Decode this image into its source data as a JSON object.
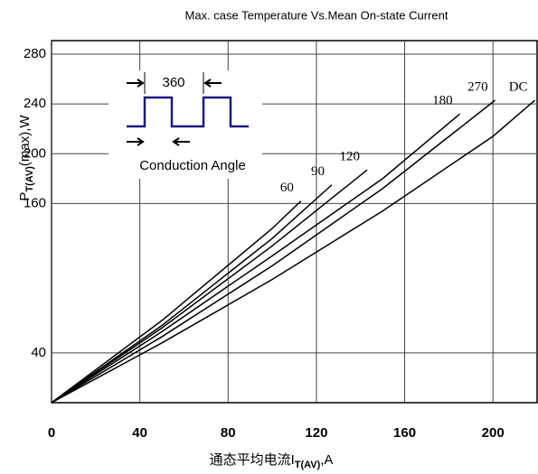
{
  "chart_data": {
    "type": "line",
    "title": "Max. case Temperature Vs.Mean On-state Current",
    "y_label": [
      "P",
      "T(AV)",
      "(max),W"
    ],
    "x_label": [
      "通态平均电流I",
      "T(AV)",
      ",A"
    ],
    "inset": {
      "period": "360",
      "caption": "Conduction Angle"
    },
    "xlim": [
      0,
      220
    ],
    "xticks": [
      0,
      40,
      80,
      120,
      160,
      200
    ],
    "ylim": [
      0,
      280
    ],
    "yticks": [
      40,
      160,
      200,
      240,
      280
    ],
    "grid": true,
    "series": [
      {
        "name": "60",
        "color": "#000000",
        "x": [
          0,
          50,
          100,
          113
        ],
        "values": [
          0,
          66,
          140,
          162
        ]
      },
      {
        "name": "90",
        "color": "#000000",
        "x": [
          0,
          50,
          100,
          127
        ],
        "values": [
          0,
          62,
          132,
          175
        ]
      },
      {
        "name": "120",
        "color": "#000000",
        "x": [
          0,
          50,
          100,
          143
        ],
        "values": [
          0,
          60,
          126,
          187
        ]
      },
      {
        "name": "180",
        "color": "#000000",
        "x": [
          0,
          50,
          100,
          150,
          185
        ],
        "values": [
          0,
          57,
          118,
          180,
          232
        ]
      },
      {
        "name": "270",
        "color": "#000000",
        "x": [
          0,
          50,
          100,
          150,
          201
        ],
        "values": [
          0,
          53,
          110,
          172,
          243
        ]
      },
      {
        "name": "DC",
        "color": "#000000",
        "x": [
          0,
          50,
          100,
          150,
          200,
          219
        ],
        "values": [
          0,
          48,
          99,
          154,
          214,
          243
        ]
      }
    ]
  }
}
